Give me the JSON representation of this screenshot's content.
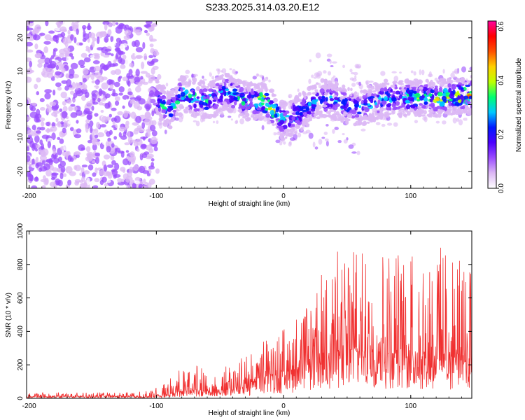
{
  "figure": {
    "title": "S233.2025.314.03.20.E12"
  },
  "chart_data": [
    {
      "type": "heatmap",
      "title": "S233.2025.314.03.20.E12",
      "xlabel": "Height of straight line (km)",
      "ylabel": "Frequency (Hz)",
      "xlim": [
        -202,
        148
      ],
      "ylim": [
        -25,
        25
      ],
      "xticks": [
        -200,
        -100,
        0,
        100
      ],
      "yticks": [
        -20,
        -10,
        0,
        10,
        20
      ],
      "grid": false,
      "colorbar": {
        "label": "Normalized spectral amplitude",
        "range": [
          0.0,
          0.62
        ],
        "ticks": [
          "0.0",
          "0.2",
          "0.4",
          "0.6"
        ],
        "colormap": [
          "#ffffff",
          "#dcb8f5",
          "#9b4dff",
          "#4b00ff",
          "#0018ff",
          "#00c8ff",
          "#00ff70",
          "#bfff00",
          "#ffd000",
          "#ff5000",
          "#ff0000",
          "#ff00a0"
        ]
      },
      "ridge": {
        "description_points_x": [
          -100,
          -90,
          -80,
          -60,
          -45,
          -30,
          -15,
          0,
          10,
          30,
          60,
          80,
          100,
          120,
          148
        ],
        "frequency_hz": [
          2,
          -2,
          3,
          1,
          4,
          1,
          1,
          -5,
          -3,
          2,
          -1,
          2,
          2,
          2,
          3
        ],
        "peak_amplitude": [
          0.3,
          0.33,
          0.34,
          0.33,
          0.3,
          0.34,
          0.47,
          0.35,
          0.3,
          0.25,
          0.3,
          0.3,
          0.34,
          0.4,
          0.52
        ]
      }
    },
    {
      "type": "line",
      "xlabel": "Height of straight line (km)",
      "ylabel": "SNR (10 * v/v)",
      "xlim": [
        -202,
        148
      ],
      "ylim": [
        0,
        1000
      ],
      "xticks": [
        -200,
        -100,
        0,
        100
      ],
      "yticks": [
        0,
        200,
        400,
        600,
        800,
        1000
      ],
      "grid": false,
      "series": [
        {
          "name": "SNR",
          "color": "#f03030",
          "envelope_x": [
            -202,
            -120,
            -105,
            -95,
            -80,
            -70,
            -60,
            -50,
            -40,
            -30,
            -20,
            -10,
            0,
            10,
            20,
            30,
            40,
            60,
            80,
            100,
            120,
            140,
            148
          ],
          "typical_max": [
            35,
            35,
            45,
            90,
            180,
            200,
            180,
            210,
            210,
            260,
            320,
            380,
            430,
            500,
            600,
            750,
            900,
            880,
            900,
            900,
            930,
            850,
            800
          ],
          "typical_base": [
            10,
            10,
            10,
            15,
            40,
            50,
            40,
            45,
            60,
            80,
            110,
            140,
            150,
            170,
            220,
            260,
            280,
            280,
            270,
            260,
            250,
            240,
            230
          ]
        }
      ]
    }
  ]
}
